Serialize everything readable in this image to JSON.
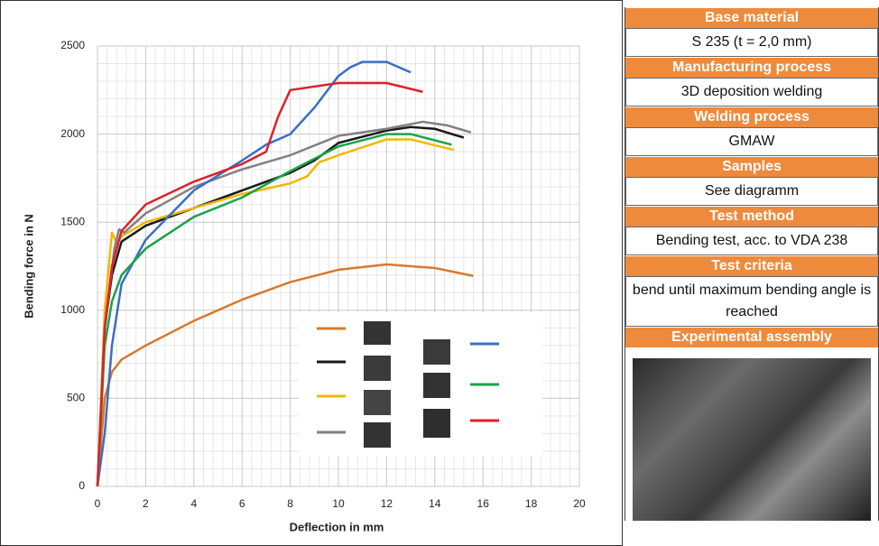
{
  "chart_data": {
    "type": "line",
    "x_label": "Deflection in mm",
    "y_label": "Bending force in N",
    "xlim": [
      0,
      20
    ],
    "ylim": [
      0,
      2500
    ],
    "xticks": [
      0,
      2,
      4,
      6,
      8,
      10,
      12,
      14,
      16,
      18,
      20
    ],
    "yticks": [
      0,
      500,
      1000,
      1500,
      2000,
      2500
    ],
    "grid": true,
    "series": [
      {
        "color": "#d9782b",
        "x": [
          0,
          0.3,
          0.6,
          1,
          2,
          3,
          4,
          6,
          8,
          10,
          12,
          14,
          15.6
        ],
        "values": [
          0,
          500,
          650,
          720,
          800,
          870,
          940,
          1060,
          1160,
          1230,
          1260,
          1240,
          1195
        ]
      },
      {
        "color": "#1a1a1a",
        "x": [
          0,
          0.3,
          0.6,
          1,
          2,
          4,
          6,
          8,
          9,
          10,
          12,
          13,
          14,
          15.2
        ],
        "values": [
          0,
          900,
          1200,
          1390,
          1480,
          1580,
          1680,
          1780,
          1850,
          1950,
          2020,
          2040,
          2030,
          1980
        ]
      },
      {
        "color": "#f2b705",
        "x": [
          0,
          0.3,
          0.6,
          0.8,
          1,
          2,
          4,
          6,
          8,
          8.7,
          9.2,
          10,
          12,
          13,
          14.8
        ],
        "values": [
          0,
          1000,
          1440,
          1380,
          1420,
          1500,
          1580,
          1660,
          1720,
          1760,
          1840,
          1880,
          1970,
          1970,
          1910
        ]
      },
      {
        "color": "#808080",
        "x": [
          0,
          0.3,
          0.7,
          0.9,
          1.1,
          2,
          4,
          6,
          8,
          10,
          12,
          13.5,
          14.5,
          15.5
        ],
        "values": [
          0,
          900,
          1350,
          1460,
          1440,
          1550,
          1700,
          1800,
          1880,
          1990,
          2030,
          2070,
          2050,
          2010
        ]
      },
      {
        "color": "#3a6fc4",
        "x": [
          0,
          0.3,
          0.6,
          1,
          2,
          4,
          6,
          7,
          8,
          9,
          10,
          10.5,
          11,
          12,
          13
        ],
        "values": [
          0,
          300,
          800,
          1150,
          1400,
          1680,
          1850,
          1940,
          2000,
          2150,
          2330,
          2380,
          2410,
          2410,
          2350
        ]
      },
      {
        "color": "#1aa34a",
        "x": [
          0,
          0.3,
          0.6,
          1,
          2,
          4,
          6,
          8,
          10,
          12,
          13,
          14.7
        ],
        "values": [
          0,
          800,
          1050,
          1200,
          1350,
          1530,
          1640,
          1790,
          1930,
          2000,
          2000,
          1940
        ]
      },
      {
        "color": "#e0202a",
        "x": [
          0,
          0.3,
          0.6,
          1,
          2,
          4,
          6,
          7,
          7.5,
          8,
          10,
          12,
          13.5
        ],
        "values": [
          0,
          900,
          1250,
          1450,
          1600,
          1730,
          1830,
          1900,
          2100,
          2250,
          2290,
          2290,
          2240
        ]
      }
    ]
  },
  "table": {
    "rows": [
      {
        "header": "Base material",
        "value": "S 235 (t = 2,0 mm)"
      },
      {
        "header": "Manufacturing process",
        "value": "3D deposition welding"
      },
      {
        "header": "Welding process",
        "value": "GMAW"
      },
      {
        "header": "Samples",
        "value": "See diagramm"
      },
      {
        "header": "Test method",
        "value": "Bending test, acc. to VDA 238"
      },
      {
        "header": "Test criteria",
        "value": "bend until maximum bending angle is reached"
      },
      {
        "header": "Experimental assembly"
      }
    ]
  }
}
